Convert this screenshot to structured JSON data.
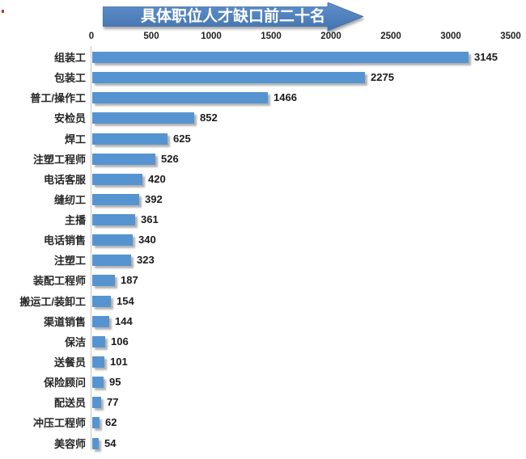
{
  "banner": {
    "title": "具体职位人才缺口前二十名"
  },
  "colors": {
    "bar": "#5694D1",
    "banner_gradient_top": "#5E8FCB",
    "banner_gradient_bottom": "#4474AF",
    "banner_border": "#3E6DA5",
    "banner_text": "#FFFFFF",
    "axis_line": "#C6C6C6",
    "category_text": "#262626",
    "value_text": "#1A1A1A",
    "tick_text": "#222222"
  },
  "chart_data": {
    "type": "bar",
    "orientation": "horizontal",
    "title": "具体职位人才缺口前二十名",
    "categories": [
      "组装工",
      "包装工",
      "普工/操作工",
      "安检员",
      "焊工",
      "注塑工程师",
      "电话客服",
      "缝纫工",
      "主播",
      "电话销售",
      "注塑工",
      "装配工程师",
      "搬运工/装卸工",
      "渠道销售",
      "保洁",
      "送餐员",
      "保险顾问",
      "配送员",
      "冲压工程师",
      "美容师"
    ],
    "values": [
      3145,
      2275,
      1466,
      852,
      625,
      526,
      420,
      392,
      361,
      340,
      323,
      187,
      154,
      144,
      106,
      101,
      95,
      77,
      62,
      54
    ],
    "x_ticks": [
      0,
      500,
      1000,
      1500,
      2000,
      2500,
      3000,
      3500
    ],
    "xlim": [
      0,
      3500
    ],
    "xlabel": "",
    "ylabel": "",
    "grid": false,
    "legend": false,
    "data_labels": true
  }
}
